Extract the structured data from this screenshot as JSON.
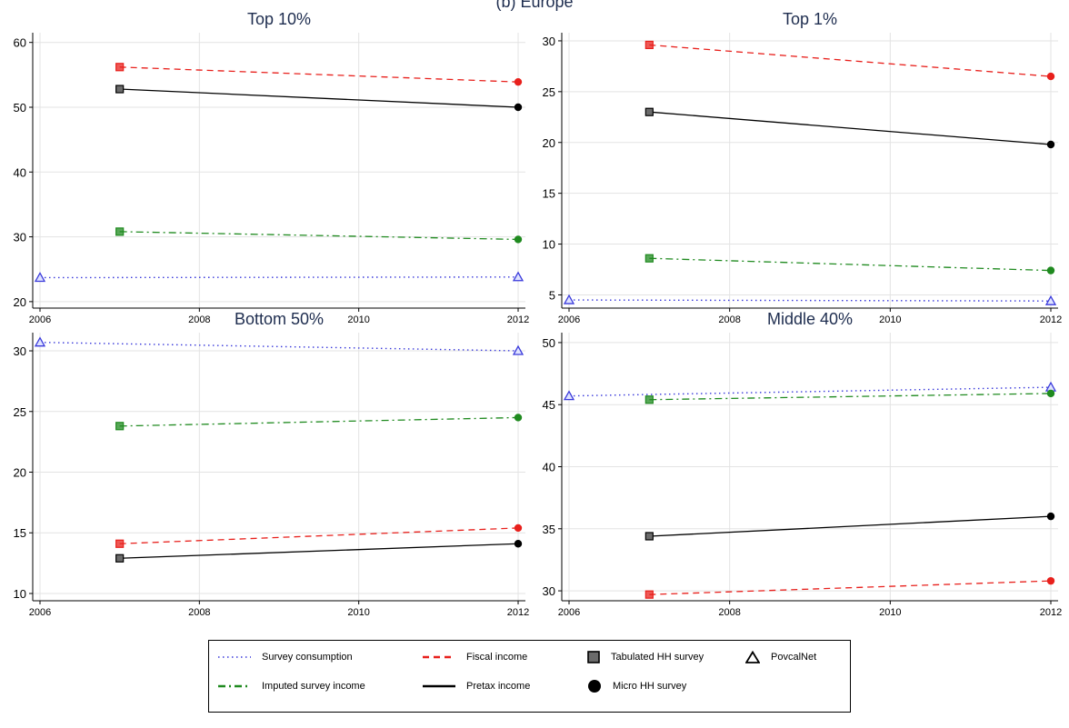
{
  "figure": {
    "title": "(b) Europe"
  },
  "legend": {
    "items": [
      {
        "key": "survey_consumption",
        "label": "Survey consumption",
        "kind": "line",
        "color": "#3a3adb",
        "dash": "dotted"
      },
      {
        "key": "fiscal_income",
        "label": "Fiscal income",
        "kind": "line",
        "color": "#e8201c",
        "dash": "dashed"
      },
      {
        "key": "tabulated",
        "label": "Tabulated HH survey",
        "kind": "marker",
        "marker": "square"
      },
      {
        "key": "povcalnet",
        "label": "PovcalNet",
        "kind": "marker",
        "marker": "triangle"
      },
      {
        "key": "imputed_survey_income",
        "label": "Imputed survey income",
        "kind": "line",
        "color": "#1f8a1f",
        "dash": "dashdot"
      },
      {
        "key": "pretax_income",
        "label": "Pretax income",
        "kind": "line",
        "color": "#000000",
        "dash": "solid"
      },
      {
        "key": "micro",
        "label": "Micro HH survey",
        "kind": "marker",
        "marker": "circle"
      }
    ]
  },
  "colors": {
    "survey_consumption": "#3a3adb",
    "fiscal_income": "#e8201c",
    "imputed_survey_income": "#1f8a1f",
    "pretax_income": "#000000",
    "grid": "#e3e3e3",
    "title": "#1e2d4f"
  },
  "chart_data": [
    {
      "type": "line",
      "title": "Top 10%",
      "xlim": [
        2006,
        2012
      ],
      "ylim": [
        19,
        61.5
      ],
      "xticks": [
        2006,
        2008,
        2010,
        2012
      ],
      "yticks": [
        20,
        30,
        40,
        50,
        60
      ],
      "grid": true,
      "series": [
        {
          "key": "survey_consumption",
          "x": [
            2006,
            2012
          ],
          "y": [
            23.7,
            23.8
          ],
          "markers": [
            "triangle",
            "triangle"
          ]
        },
        {
          "key": "fiscal_income",
          "x": [
            2007,
            2012
          ],
          "y": [
            56.2,
            53.9
          ],
          "markers": [
            "square",
            "circle"
          ]
        },
        {
          "key": "pretax_income",
          "x": [
            2007,
            2012
          ],
          "y": [
            52.8,
            50.0
          ],
          "markers": [
            "square",
            "circle"
          ]
        },
        {
          "key": "imputed_survey_income",
          "x": [
            2007,
            2012
          ],
          "y": [
            30.8,
            29.6
          ],
          "markers": [
            "square",
            "circle"
          ]
        }
      ]
    },
    {
      "type": "line",
      "title": "Top 1%",
      "xlim": [
        2006,
        2012
      ],
      "ylim": [
        3.7,
        30.8
      ],
      "xticks": [
        2006,
        2008,
        2010,
        2012
      ],
      "yticks": [
        5,
        10,
        15,
        20,
        25,
        30
      ],
      "grid": true,
      "series": [
        {
          "key": "survey_consumption",
          "x": [
            2006,
            2012
          ],
          "y": [
            4.5,
            4.4
          ],
          "markers": [
            "triangle",
            "triangle"
          ]
        },
        {
          "key": "fiscal_income",
          "x": [
            2007,
            2012
          ],
          "y": [
            29.6,
            26.5
          ],
          "markers": [
            "square",
            "circle"
          ]
        },
        {
          "key": "pretax_income",
          "x": [
            2007,
            2012
          ],
          "y": [
            23.0,
            19.8
          ],
          "markers": [
            "square",
            "circle"
          ]
        },
        {
          "key": "imputed_survey_income",
          "x": [
            2007,
            2012
          ],
          "y": [
            8.6,
            7.4
          ],
          "markers": [
            "square",
            "circle"
          ]
        }
      ]
    },
    {
      "type": "line",
      "title": "Bottom 50%",
      "xlim": [
        2006,
        2012
      ],
      "ylim": [
        9.4,
        31.5
      ],
      "xticks": [
        2006,
        2008,
        2010,
        2012
      ],
      "yticks": [
        10,
        15,
        20,
        25,
        30
      ],
      "grid": true,
      "series": [
        {
          "key": "survey_consumption",
          "x": [
            2006,
            2012
          ],
          "y": [
            30.7,
            30.0
          ],
          "markers": [
            "triangle",
            "triangle"
          ]
        },
        {
          "key": "imputed_survey_income",
          "x": [
            2007,
            2012
          ],
          "y": [
            23.8,
            24.5
          ],
          "markers": [
            "square",
            "circle"
          ]
        },
        {
          "key": "fiscal_income",
          "x": [
            2007,
            2012
          ],
          "y": [
            14.1,
            15.4
          ],
          "markers": [
            "square",
            "circle"
          ]
        },
        {
          "key": "pretax_income",
          "x": [
            2007,
            2012
          ],
          "y": [
            12.9,
            14.1
          ],
          "markers": [
            "square",
            "circle"
          ]
        }
      ]
    },
    {
      "type": "line",
      "title": "Middle 40%",
      "xlim": [
        2006,
        2012
      ],
      "ylim": [
        29.2,
        50.8
      ],
      "xticks": [
        2006,
        2008,
        2010,
        2012
      ],
      "yticks": [
        30,
        35,
        40,
        45,
        50
      ],
      "grid": true,
      "series": [
        {
          "key": "survey_consumption",
          "x": [
            2006,
            2012
          ],
          "y": [
            45.7,
            46.4
          ],
          "markers": [
            "triangle",
            "triangle"
          ]
        },
        {
          "key": "imputed_survey_income",
          "x": [
            2007,
            2012
          ],
          "y": [
            45.4,
            45.9
          ],
          "markers": [
            "square",
            "circle"
          ]
        },
        {
          "key": "pretax_income",
          "x": [
            2007,
            2012
          ],
          "y": [
            34.4,
            36.0
          ],
          "markers": [
            "square",
            "circle"
          ]
        },
        {
          "key": "fiscal_income",
          "x": [
            2007,
            2012
          ],
          "y": [
            29.7,
            30.8
          ],
          "markers": [
            "square",
            "circle"
          ]
        }
      ]
    }
  ]
}
